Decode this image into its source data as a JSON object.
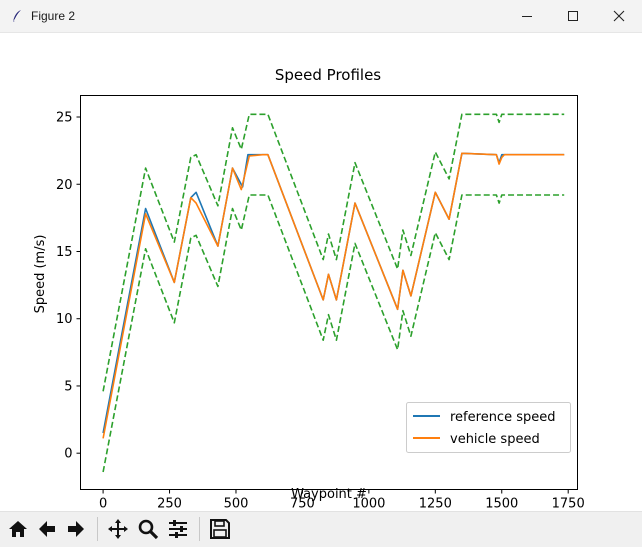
{
  "window": {
    "title": "Figure 2",
    "controls": [
      "minimize-icon",
      "maximize-icon",
      "close-icon"
    ],
    "app_icon": "feather-icon"
  },
  "toolbar": {
    "buttons": [
      "home-icon",
      "back-arrow-icon",
      "forward-arrow-icon",
      "pan-icon",
      "zoom-icon",
      "configure-subplots-icon",
      "save-icon"
    ]
  },
  "chart_data": {
    "type": "line",
    "title": "Speed Profiles",
    "xlabel": "Waypoint #",
    "ylabel": "Speed (m/s)",
    "xlim": [
      -85,
      1785
    ],
    "ylim": [
      -2.7,
      26.6
    ],
    "xticks": [
      0,
      250,
      500,
      750,
      1000,
      1250,
      1500,
      1750
    ],
    "yticks": [
      0,
      5,
      10,
      15,
      20,
      25
    ],
    "grid": false,
    "legend_position": "lower right",
    "series": [
      {
        "name": "reference speed",
        "color": "#1f77b4",
        "style": "solid",
        "x": [
          0,
          160,
          268,
          330,
          350,
          432,
          487,
          525,
          545,
          600,
          620,
          828,
          848,
          878,
          948,
          1108,
          1128,
          1158,
          1250,
          1302,
          1350,
          1480,
          1490,
          1500,
          1510,
          1735
        ],
        "y": [
          1.5,
          18.2,
          12.7,
          19.0,
          19.4,
          15.4,
          21.2,
          19.8,
          22.2,
          22.2,
          22.2,
          11.4,
          13.3,
          11.4,
          18.6,
          10.7,
          13.6,
          11.7,
          19.4,
          17.4,
          22.3,
          22.2,
          21.6,
          22.2,
          22.2,
          22.2
        ]
      },
      {
        "name": "vehicle speed",
        "color": "#ff7f0e",
        "style": "solid",
        "x": [
          0,
          160,
          268,
          330,
          350,
          432,
          487,
          520,
          550,
          600,
          620,
          828,
          848,
          878,
          948,
          1108,
          1128,
          1158,
          1250,
          1302,
          1350,
          1480,
          1490,
          1500,
          1510,
          1735
        ],
        "y": [
          1.1,
          17.8,
          12.7,
          19.0,
          18.6,
          15.4,
          21.2,
          19.6,
          22.1,
          22.2,
          22.2,
          11.4,
          13.3,
          11.4,
          18.6,
          10.7,
          13.6,
          11.7,
          19.4,
          17.4,
          22.3,
          22.2,
          21.5,
          22.0,
          22.2,
          22.2
        ]
      },
      {
        "color": "#2ca02c",
        "style": "dashed",
        "x": [
          0,
          160,
          268,
          330,
          350,
          432,
          487,
          520,
          550,
          600,
          620,
          828,
          848,
          878,
          948,
          1108,
          1128,
          1158,
          1250,
          1302,
          1350,
          1480,
          1490,
          1500,
          1510,
          1735
        ],
        "y": [
          4.6,
          21.2,
          15.7,
          22.0,
          22.2,
          18.4,
          24.2,
          22.6,
          25.2,
          25.2,
          25.2,
          14.4,
          16.3,
          14.4,
          21.6,
          13.7,
          16.6,
          14.7,
          22.4,
          20.4,
          25.2,
          25.2,
          24.6,
          25.2,
          25.2,
          25.2
        ]
      },
      {
        "color": "#2ca02c",
        "style": "dashed",
        "x": [
          0,
          160,
          268,
          330,
          350,
          432,
          487,
          520,
          550,
          600,
          620,
          828,
          848,
          878,
          948,
          1108,
          1128,
          1158,
          1250,
          1302,
          1350,
          1480,
          1490,
          1500,
          1510,
          1735
        ],
        "y": [
          -1.4,
          15.2,
          9.7,
          16.0,
          16.2,
          12.4,
          18.2,
          16.6,
          19.2,
          19.2,
          19.2,
          8.4,
          10.3,
          8.4,
          15.6,
          7.7,
          10.6,
          8.7,
          16.4,
          14.4,
          19.2,
          19.2,
          18.6,
          19.2,
          19.2,
          19.2
        ]
      }
    ]
  }
}
